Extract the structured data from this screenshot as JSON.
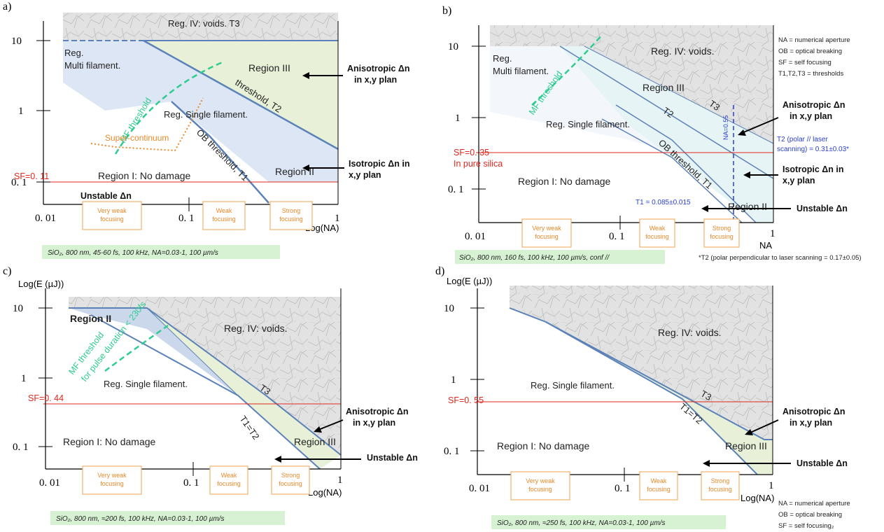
{
  "panel_a": {
    "title": "a)",
    "ticks_y": [
      "10",
      "1",
      "0. 1"
    ],
    "ticks_x": [
      "0. 01",
      "0. 1",
      "1"
    ],
    "xlabel": "Log(NA)",
    "voids": "Reg. IV: voids.  T3",
    "multi": [
      "Reg.",
      "Multi filament."
    ],
    "single": "Reg. Single filament.",
    "region3": "Region III",
    "region2": "Region II",
    "region1": "Region I: No damage",
    "unstable_left": "Unstable Δn",
    "sf": "SF=0. 11",
    "mf_threshold": "MF threshold",
    "super_continuum": "Super-continuum",
    "threshold_t2": "threshold, T2",
    "ob_threshold": "OB threshold, T1",
    "aniso": [
      "Anisotropic Δn",
      "in x,y plan"
    ],
    "iso": [
      "Isotropic Δn in",
      "x,y plan"
    ],
    "focus": [
      [
        "Very weak",
        "focusing"
      ],
      [
        "Weak",
        "focusing"
      ],
      [
        "Strong",
        "focusing"
      ]
    ],
    "caption": "SiO₂, 800 nm, 45-60 fs, 100 kHz, NA=0.03-1, 100 µm/s"
  },
  "panel_b": {
    "title": "b)",
    "ticks_y": [
      "10",
      "1",
      "0. 1"
    ],
    "ticks_x": [
      "0. 01",
      "0. 1",
      "1"
    ],
    "xlabel": "NA",
    "voids": "Reg. IV: voids.",
    "multi": [
      "Reg.",
      "Multi filament."
    ],
    "single": "Reg. Single filament.",
    "region3": "Region III",
    "region2": "Region II",
    "region1": "Region I: No damage",
    "t3": "T3",
    "t2": "T2",
    "ob_threshold": "OB threshold, T1",
    "mf_threshold": "MF threshold",
    "na_line": "NA=0.55",
    "sf": [
      "SF=0. 35",
      "In pure silica"
    ],
    "t1_value": "T1 = 0.085±0.015",
    "t2_value": [
      "T2 (polar // laser",
      "scanning) = 0.31±0.03*"
    ],
    "aniso": [
      "Anisotropic Δn",
      "in x,y plan"
    ],
    "iso": [
      "Isotropic Δn in",
      "x,y plan"
    ],
    "unstable": "Unstable Δn",
    "legend": [
      "NA = numerical aperture",
      "OB = optical breaking",
      "SF = self focusing",
      "T1,T2,T3 = thresholds"
    ],
    "focus": [
      [
        "Very weak",
        "focusing"
      ],
      [
        "Weak",
        "focusing"
      ],
      [
        "Strong",
        "focusing"
      ]
    ],
    "caption": "SiO₂, 800 nm, 160 fs, 100 kHz, 100 µm/s, conf //",
    "footnote": "*T2 (polar perpendicular to laser scanning = 0.17±0.05)"
  },
  "panel_c": {
    "title": "c)",
    "ylabel": "Log(E (µJ))",
    "ticks_y": [
      "10",
      "1",
      "0. 1"
    ],
    "ticks_x": [
      "0. 01",
      "0. 1",
      "1"
    ],
    "xlabel": "Log(NA)",
    "voids": "Reg. IV: voids.",
    "region2": "Region II",
    "mf_threshold": [
      "MF threshold",
      "for pulse duration < 230fs"
    ],
    "single": "Reg. Single filament.",
    "region3": "Region III",
    "region1": "Region I: No damage",
    "t3": "T3",
    "t1t2": "T1=T2",
    "sf": "SF=0. 44",
    "aniso": [
      "Anisotropic Δn",
      "in x,y plan"
    ],
    "unstable": "Unstable Δn",
    "focus": [
      [
        "Very weak",
        "focusing"
      ],
      [
        "Weak",
        "focusing"
      ],
      [
        "Strong",
        "focusing"
      ]
    ],
    "caption": "SiO₂, 800 nm, ≈200 fs, 100 kHz, NA=0.03-1, 100 µm/s"
  },
  "panel_d": {
    "title": "d)",
    "ylabel": "Log(E (µJ))",
    "ticks_y": [
      "10",
      "1",
      "0. 1"
    ],
    "ticks_x": [
      "0. 01",
      "0. 1",
      "1"
    ],
    "xlabel": "Log(NA)",
    "voids": "Reg. IV: voids.",
    "single": "Reg. Single filament.",
    "region3": "Region III",
    "region1": "Region I: No damage",
    "t3": "T3",
    "t1t2": "T1=T2",
    "sf": "SF=0. 55",
    "aniso": [
      "Anisotropic Δn",
      "in x,y plan"
    ],
    "unstable": "Unstable Δn",
    "legend": [
      "NA = numerical aperture",
      "OB = optical breaking",
      "SF = self focusing₂"
    ],
    "focus": [
      [
        "Very weak",
        "focusing"
      ],
      [
        "Weak",
        "focusing"
      ],
      [
        "Strong",
        "focusing"
      ]
    ],
    "caption": "SiO₂, 800 nm, ≈250 fs, 100 kHz, NA=0.03-1, 100 µm/s"
  },
  "colors": {
    "blue_region": "#dce6f4",
    "green_region": "#e8f0d8",
    "light_region": "#e6f4f6",
    "boundary": "#5b82b8",
    "sf_line": "#e0281e",
    "focus_box": "#f4b26a",
    "caption_bg": "#d6f2d2",
    "mf_line": "#2ecc8f",
    "marble": "#e4e4e4"
  }
}
